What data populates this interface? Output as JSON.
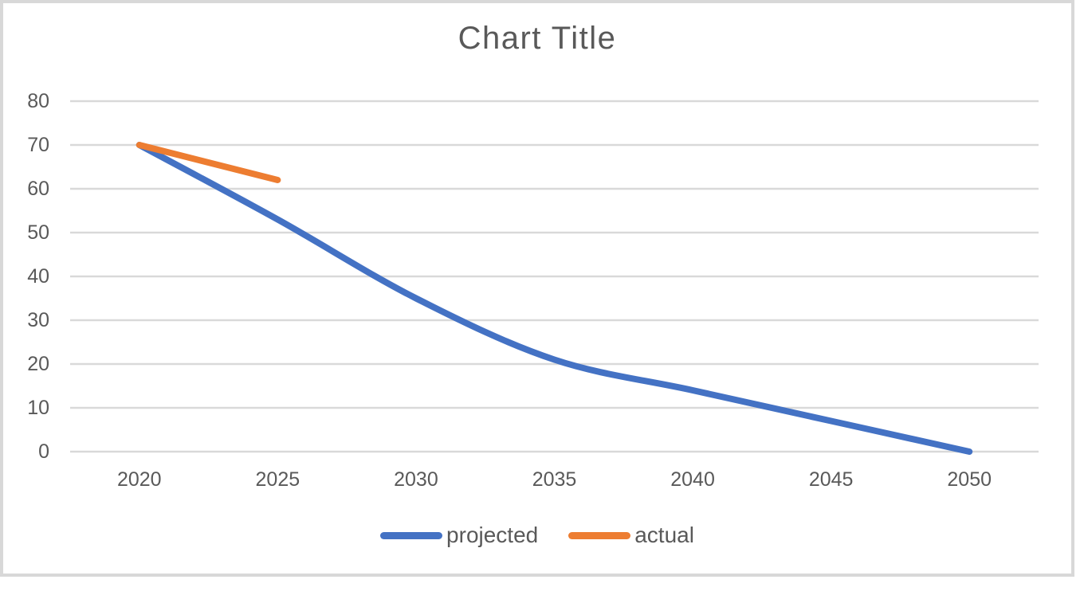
{
  "chart_data": {
    "type": "line",
    "title": "Chart Title",
    "xlabel": "",
    "ylabel": "",
    "categories": [
      "2020",
      "2025",
      "2030",
      "2035",
      "2040",
      "2045",
      "2050"
    ],
    "series": [
      {
        "name": "projected",
        "color": "#4472C4",
        "values": [
          70,
          53,
          35,
          21,
          14,
          7,
          0
        ]
      },
      {
        "name": "actual",
        "color": "#ED7D31",
        "values": [
          70,
          62,
          null,
          null,
          null,
          null,
          null
        ]
      }
    ],
    "ylim": [
      0,
      80
    ],
    "yticks": [
      "80",
      "70",
      "60",
      "50",
      "40",
      "30",
      "20",
      "10",
      "0"
    ],
    "grid": "horizontal",
    "legend_position": "bottom",
    "legend_labels": [
      "projected",
      "actual"
    ],
    "line_smoothing": true,
    "text_color": "#595959",
    "gridline_color": "#D9D9D9",
    "frame_border_color": "#D8D8D8",
    "background_color": "#FFFFFF"
  }
}
